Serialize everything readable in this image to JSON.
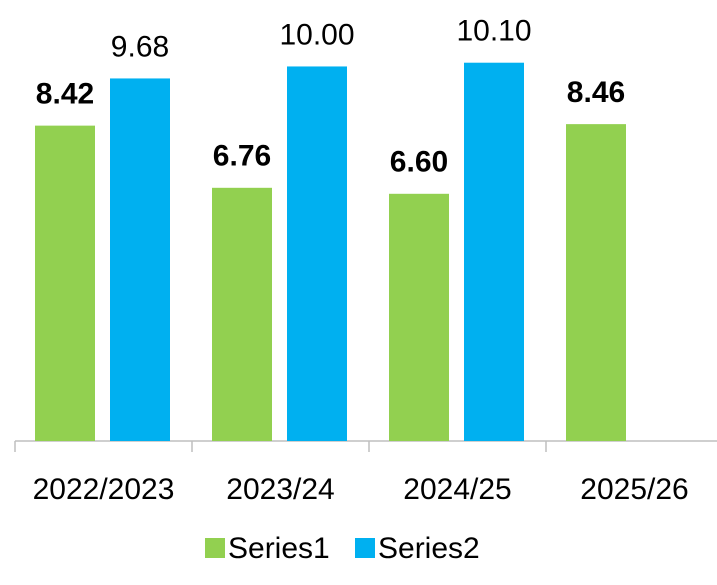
{
  "chart_data": {
    "type": "bar",
    "categories": [
      "2022/2023",
      "2023/24",
      "2024/25",
      "2025/26"
    ],
    "series": [
      {
        "name": "Series1",
        "color": "#92d050",
        "values": [
          8.42,
          6.76,
          6.6,
          8.46
        ],
        "value_labels": [
          "8.42",
          "6.76",
          "6.60",
          "8.46"
        ]
      },
      {
        "name": "Series2",
        "color": "#00b0f0",
        "values": [
          9.68,
          10.0,
          10.1,
          null
        ],
        "value_labels": [
          "9.68",
          "10.00",
          "10.10",
          null
        ]
      }
    ],
    "ylim": [
      0,
      11
    ]
  }
}
